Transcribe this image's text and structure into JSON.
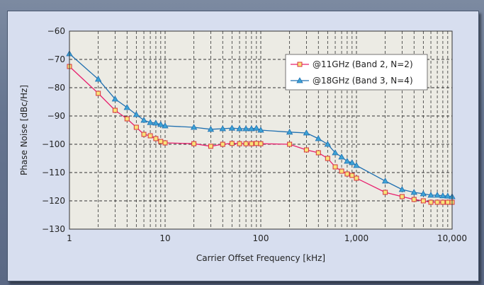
{
  "chart_data": {
    "type": "line",
    "xscale": "log",
    "xlabel": "Carrier Offset Frequency [kHz]",
    "ylabel": "Phase Noise [dBc/Hz]",
    "xlim": [
      1,
      10000
    ],
    "ylim": [
      -130,
      -60
    ],
    "xticks": [
      1,
      10,
      100,
      1000,
      10000
    ],
    "xtick_labels": [
      "1",
      "10",
      "100",
      "1,000",
      "10,000"
    ],
    "yticks": [
      -60,
      -70,
      -80,
      -90,
      -100,
      -110,
      -120,
      -130
    ],
    "ytick_labels": [
      "−60",
      "−70",
      "−80",
      "−90",
      "−100",
      "−110",
      "−120",
      "−130"
    ],
    "grid": true,
    "legend_position": "top-right",
    "series": [
      {
        "name": "@11GHz (Band 2, N=2)",
        "color": "#e8206e",
        "marker": "square",
        "marker_fill": "#f7e47a",
        "marker_stroke": "#d8313a",
        "x": [
          1,
          2,
          3,
          4,
          5,
          6,
          7,
          8,
          9,
          10,
          20,
          30,
          40,
          50,
          60,
          70,
          80,
          90,
          100,
          200,
          300,
          400,
          500,
          600,
          700,
          800,
          900,
          1000,
          2000,
          3000,
          4000,
          5000,
          6000,
          7000,
          8000,
          9000,
          10000
        ],
        "y": [
          -72.5,
          -82,
          -88,
          -91,
          -94,
          -96.5,
          -97,
          -98,
          -99,
          -99.5,
          -99.8,
          -100.7,
          -100,
          -99.7,
          -99.8,
          -99.8,
          -99.8,
          -99.7,
          -99.8,
          -100,
          -102,
          -103,
          -105,
          -108,
          -109.5,
          -110.5,
          -111,
          -112,
          -117,
          -118.5,
          -119.5,
          -120,
          -120.5,
          -120.5,
          -120.5,
          -120.5,
          -120.5
        ]
      },
      {
        "name": "@18GHz (Band 3, N=4)",
        "color": "#1f6fb0",
        "marker": "triangle",
        "marker_fill": "#3da3d6",
        "marker_stroke": "#1f6fb0",
        "x": [
          1,
          2,
          3,
          4,
          5,
          6,
          7,
          8,
          9,
          10,
          20,
          30,
          40,
          50,
          60,
          70,
          80,
          90,
          100,
          200,
          300,
          400,
          500,
          600,
          700,
          800,
          900,
          1000,
          2000,
          3000,
          4000,
          5000,
          6000,
          7000,
          8000,
          9000,
          10000
        ],
        "y": [
          -68,
          -77,
          -84,
          -87,
          -89.5,
          -91.5,
          -92.3,
          -92.5,
          -93,
          -93.5,
          -94,
          -94.7,
          -94.5,
          -94.3,
          -94.5,
          -94.5,
          -94.5,
          -94.3,
          -95,
          -95.7,
          -96,
          -98,
          -100,
          -103,
          -104.5,
          -106,
          -106.5,
          -107.5,
          -113,
          -116,
          -117,
          -117.5,
          -118,
          -118,
          -118.2,
          -118.3,
          -118.5
        ]
      }
    ]
  }
}
